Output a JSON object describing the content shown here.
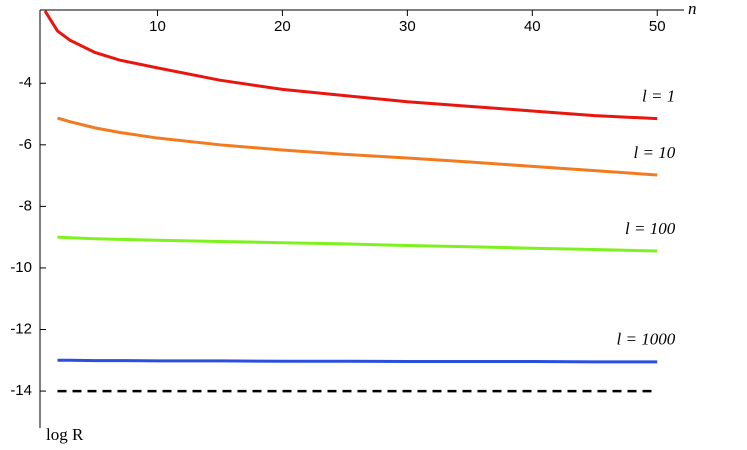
{
  "chart_data": {
    "type": "line",
    "x_label": "n",
    "y_label": "log R",
    "x": [
      1,
      2,
      3,
      5,
      7,
      10,
      15,
      20,
      25,
      30,
      35,
      40,
      45,
      50
    ],
    "xlim": [
      0.6,
      51.5
    ],
    "ylim": [
      -15.2,
      -1.62
    ],
    "xticks": [
      10,
      20,
      30,
      40,
      50
    ],
    "yticks": [
      -4,
      -6,
      -8,
      -10,
      -12,
      -14
    ],
    "series": [
      {
        "name": "l = 1",
        "color": "#e8160c",
        "values": [
          -1.65,
          -2.3,
          -2.6,
          -3.0,
          -3.25,
          -3.5,
          -3.9,
          -4.2,
          -4.4,
          -4.6,
          -4.75,
          -4.9,
          -5.05,
          -5.15
        ]
      },
      {
        "name": "l = 10",
        "color": "#f27a1f",
        "values": [
          null,
          -5.13,
          -5.25,
          -5.45,
          -5.6,
          -5.78,
          -6.0,
          -6.17,
          -6.31,
          -6.43,
          -6.56,
          -6.7,
          -6.84,
          -6.98
        ]
      },
      {
        "name": "l = 100",
        "color": "#7ef21f",
        "values": [
          null,
          -9.0,
          -9.02,
          -9.05,
          -9.07,
          -9.1,
          -9.14,
          -9.18,
          -9.22,
          -9.27,
          -9.31,
          -9.36,
          -9.4,
          -9.45
        ]
      },
      {
        "name": "l = 1000",
        "color": "#2a4fe0",
        "values": [
          null,
          -13.0,
          -13.0,
          -13.01,
          -13.01,
          -13.02,
          -13.02,
          -13.03,
          -13.03,
          -13.04,
          -13.04,
          -13.04,
          -13.05,
          -13.05
        ]
      },
      {
        "color": "#000000",
        "dash": true,
        "values": [
          null,
          -14,
          -14,
          -14,
          -14,
          -14,
          -14,
          -14,
          -14,
          -14,
          -14,
          -14,
          -14,
          -14
        ]
      }
    ]
  }
}
